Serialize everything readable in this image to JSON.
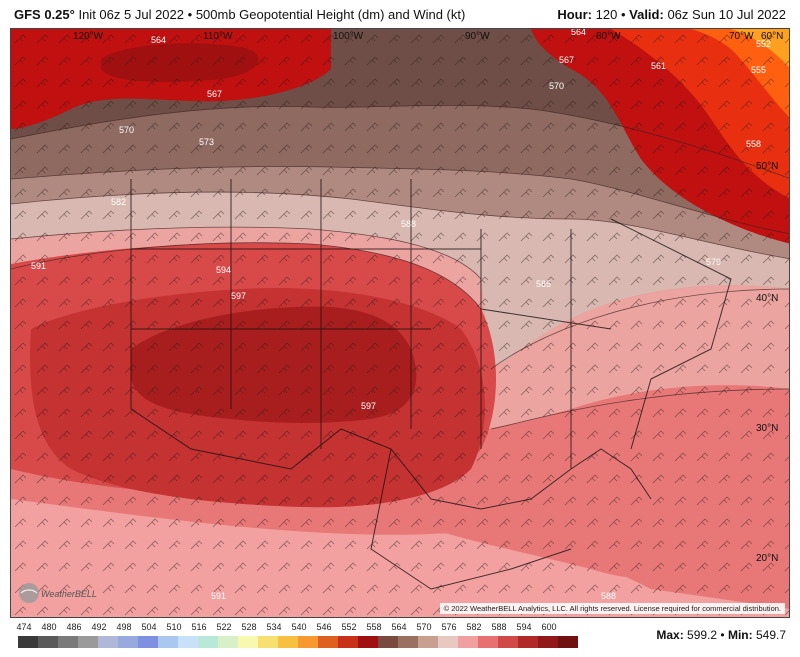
{
  "header": {
    "model": "GFS 0.25°",
    "init": "Init 06z 5 Jul 2022",
    "product": "500mb Geopotential Height (dm) and Wind (kt)",
    "hour_label": "Hour:",
    "hour_value": "120",
    "valid_label": "Valid:",
    "valid_value": "06z Sun 10 Jul 2022"
  },
  "map": {
    "lon_labels": [
      "120°W",
      "110°W",
      "100°W",
      "90°W",
      "80°W",
      "70°W",
      "60°N"
    ],
    "lat_labels": [
      "50°N",
      "40°N",
      "30°N",
      "20°N"
    ],
    "contour_labels": [
      "564",
      "567",
      "570",
      "573",
      "582",
      "588",
      "591",
      "594",
      "597",
      "597",
      "591",
      "588",
      "564",
      "567",
      "570",
      "561",
      "555",
      "558",
      "552",
      "579",
      "585"
    ],
    "copyright": "© 2022 WeatherBELL Analytics, LLC. All rights reserved. License required for commercial distribution.",
    "logo_text": "WeatherBELL"
  },
  "colorbar": {
    "ticks": [
      "474",
      "480",
      "486",
      "492",
      "498",
      "504",
      "510",
      "516",
      "522",
      "528",
      "534",
      "540",
      "546",
      "552",
      "558",
      "564",
      "570",
      "576",
      "582",
      "588",
      "594",
      "600"
    ],
    "colors": [
      "#3a3a3a",
      "#5a5a5a",
      "#7a7a7a",
      "#9a9a9a",
      "#b0b8d8",
      "#9aa8e0",
      "#7f90e0",
      "#a8c8f0",
      "#c8e0f8",
      "#b8e8d8",
      "#d8f0c8",
      "#f8f8b0",
      "#f8e070",
      "#f8c040",
      "#f89830",
      "#e06020",
      "#c83018",
      "#a01010",
      "#7a4a40",
      "#9a7060",
      "#c8a090",
      "#e8c8c0",
      "#f0a0a0",
      "#e87070",
      "#d04848",
      "#b02828",
      "#901818",
      "#701010"
    ]
  },
  "stats": {
    "max_label": "Max:",
    "max_value": "599.2",
    "min_label": "Min:",
    "min_value": "549.7"
  },
  "colors": {
    "ridge_core": "#a81e1e",
    "ridge_inner": "#c43232",
    "ridge_mid": "#d84a4a",
    "ridge_outer": "#e87878",
    "pink": "#f2a0a0",
    "trough_red": "#c01010",
    "trough_orange": "#ff4a10",
    "brown_dark": "#6e4e46",
    "brown_mid": "#8e6a60",
    "brown_light": "#b08a80",
    "tan": "#d8b8b0"
  }
}
